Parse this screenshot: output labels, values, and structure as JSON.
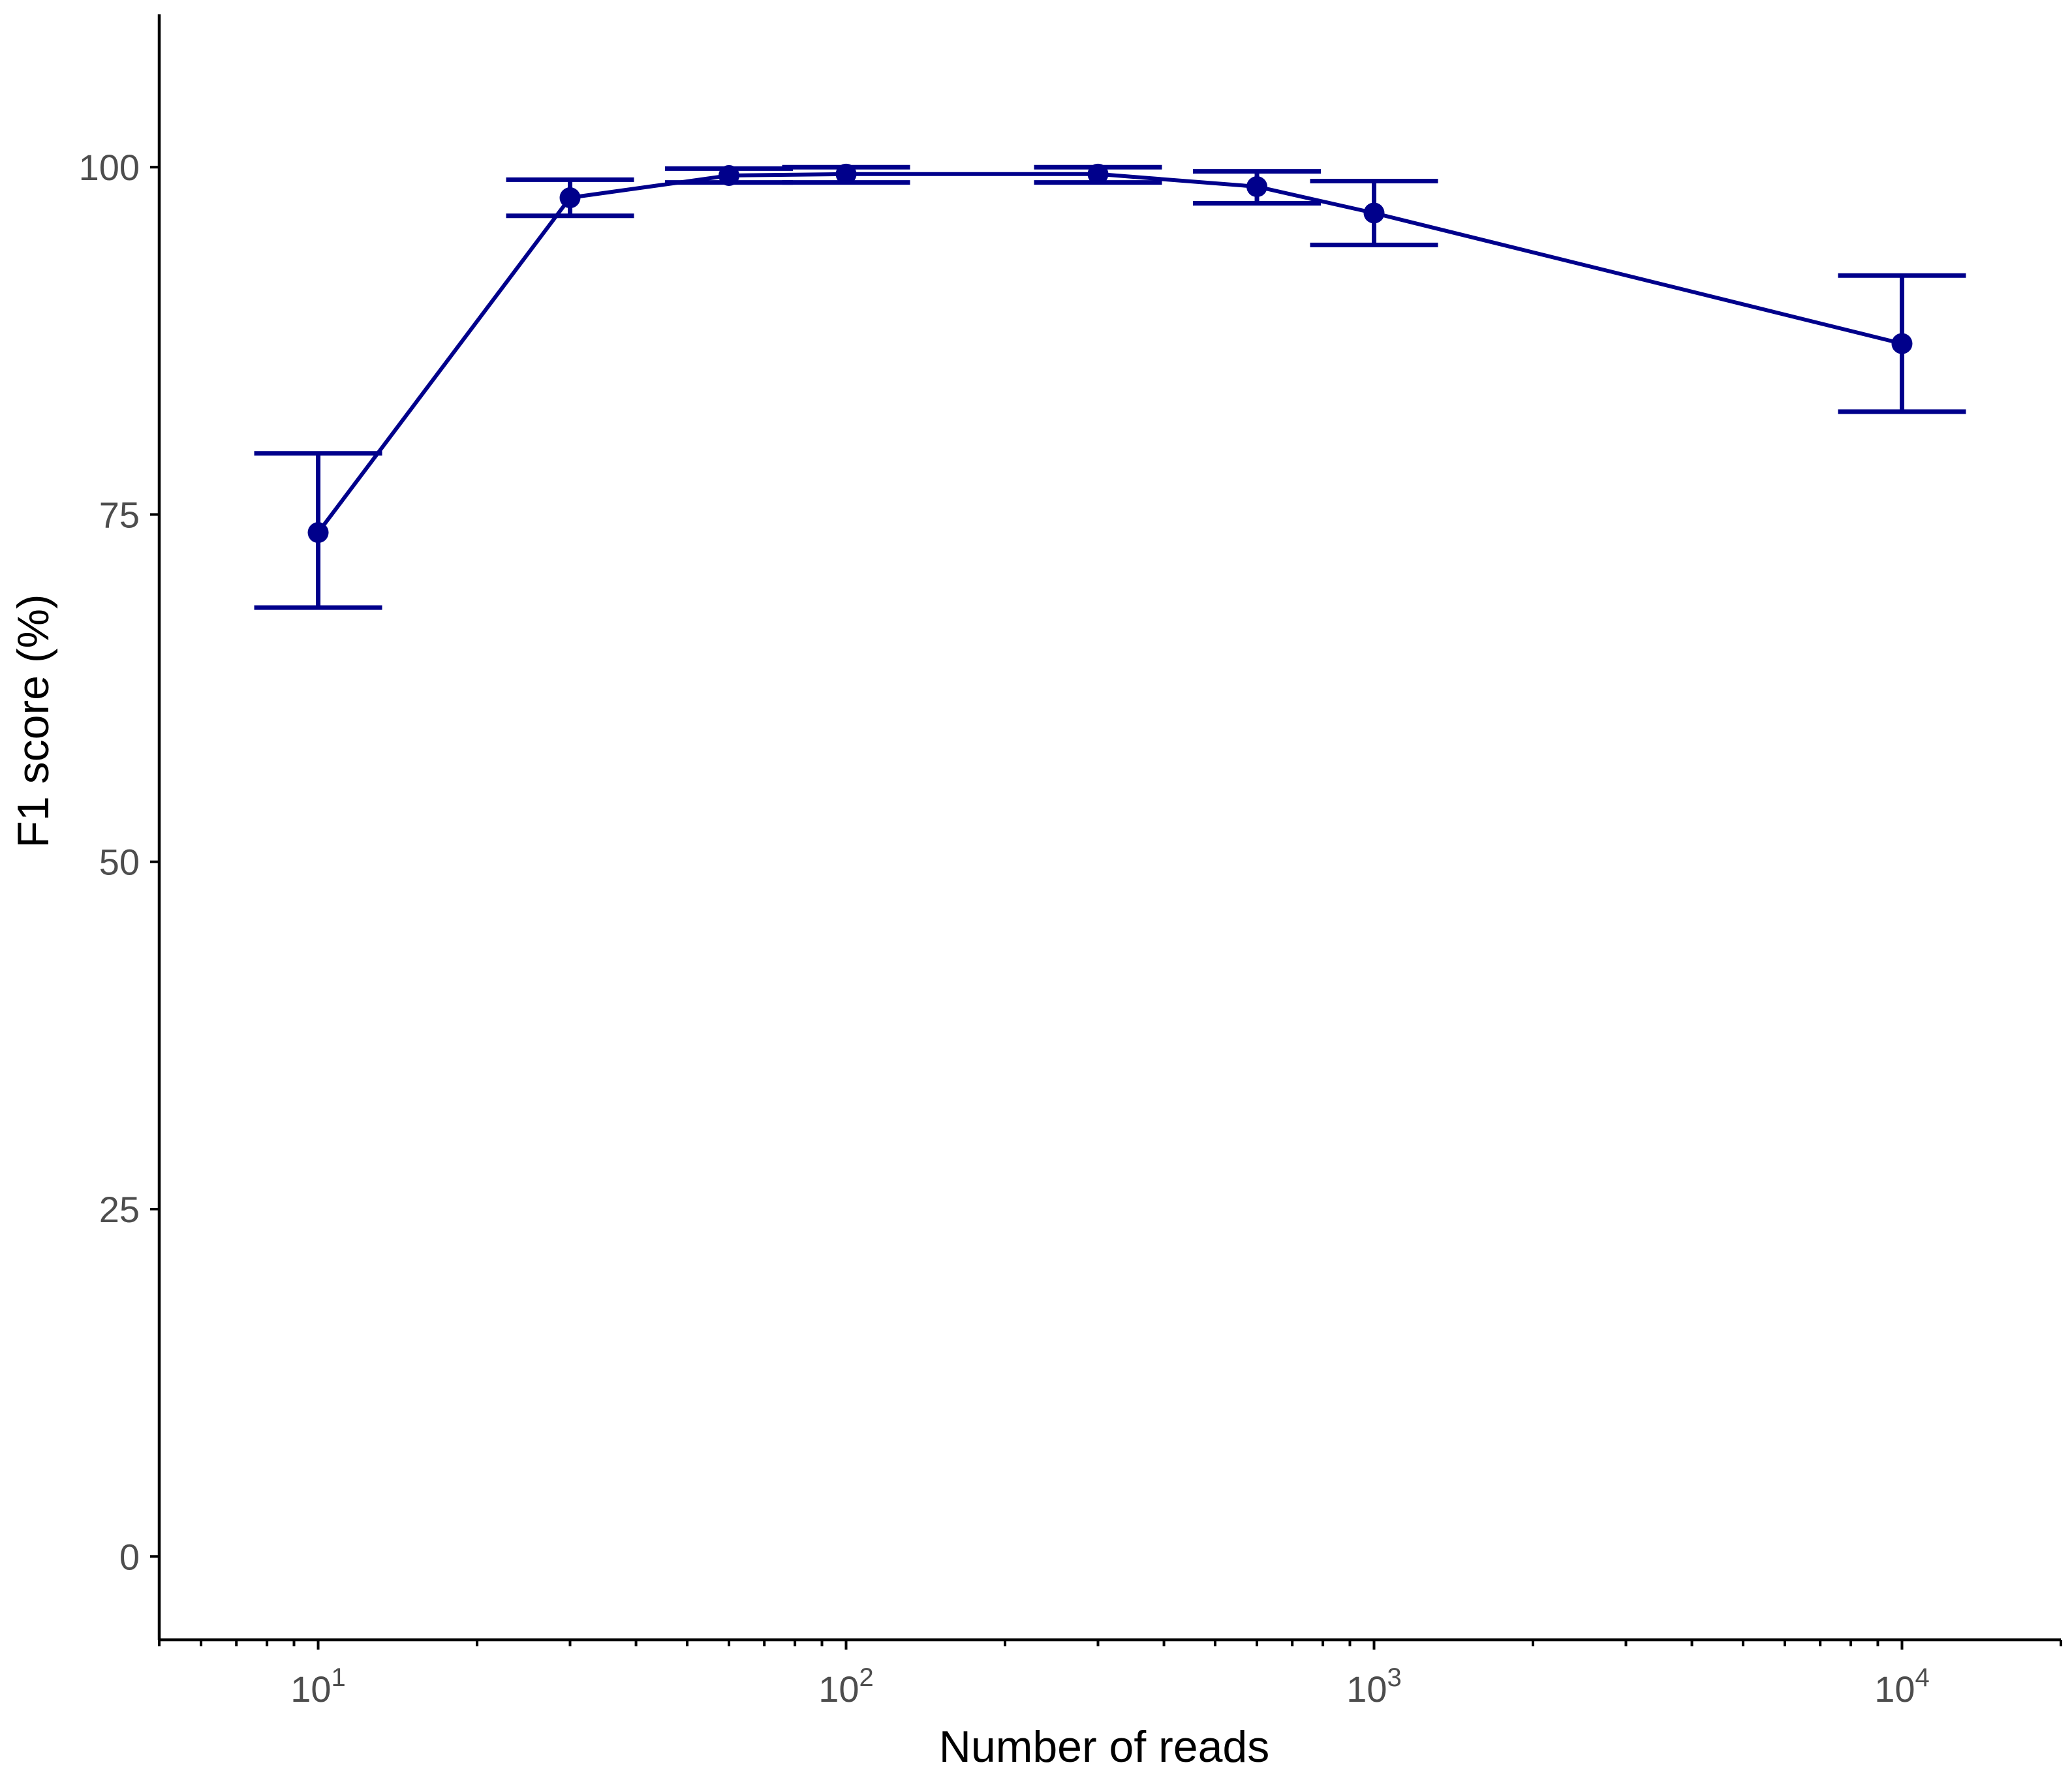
{
  "chart_data": {
    "type": "line",
    "xlabel": "Number of reads",
    "ylabel": "F1 score (%)",
    "x_scale": "log10",
    "xlim": [
      5,
      20000
    ],
    "ylim": [
      -6,
      111
    ],
    "x_ticks": [
      {
        "value": 10,
        "base": "10",
        "exp": "1"
      },
      {
        "value": 100,
        "base": "10",
        "exp": "2"
      },
      {
        "value": 1000,
        "base": "10",
        "exp": "3"
      },
      {
        "value": 10000,
        "base": "10",
        "exp": "4"
      }
    ],
    "y_ticks": [
      0,
      25,
      50,
      75,
      100
    ],
    "grid": false,
    "legend": "none",
    "color": "#00008b",
    "series": [
      {
        "x": [
          10,
          30,
          60,
          100,
          300,
          600,
          1000,
          10000
        ],
        "y": [
          73.7,
          97.8,
          99.4,
          99.5,
          99.5,
          98.6,
          96.7,
          87.3
        ],
        "ymin": [
          68.3,
          96.5,
          98.9,
          98.9,
          98.9,
          97.4,
          94.4,
          82.4
        ],
        "ymax": [
          79.4,
          99.1,
          99.9,
          100.0,
          100.0,
          99.7,
          99.0,
          92.2
        ]
      }
    ]
  }
}
